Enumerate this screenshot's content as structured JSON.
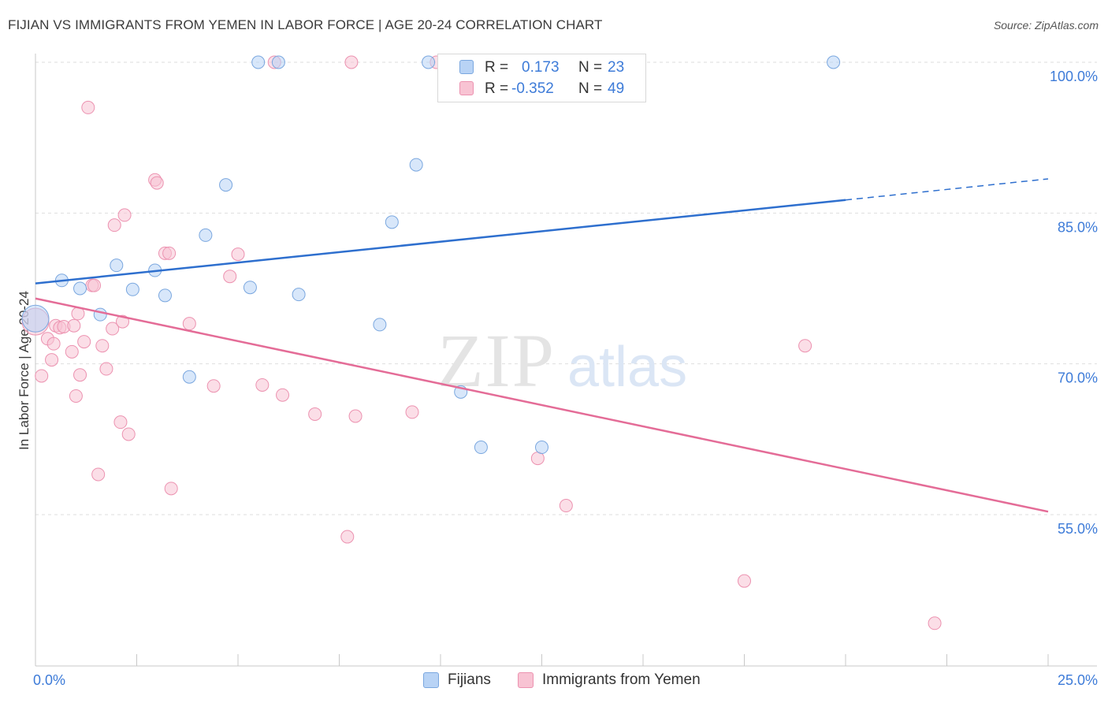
{
  "title": "FIJIAN VS IMMIGRANTS FROM YEMEN IN LABOR FORCE | AGE 20-24 CORRELATION CHART",
  "source": "Source: ZipAtlas.com",
  "watermark": {
    "zip": "ZIP",
    "atlas": "atlas"
  },
  "legend_top": {
    "r_label": "R =",
    "n_label": "N =",
    "rows": [
      {
        "r": "0.173",
        "n": "23"
      },
      {
        "r": "-0.352",
        "n": "49"
      }
    ]
  },
  "colors": {
    "fijians_fill": "#b8d3f5",
    "fijians_stroke": "#7aa7df",
    "fijians_line": "#2e6fce",
    "yemen_fill": "#f8c3d3",
    "yemen_stroke": "#ec92b0",
    "yemen_line": "#e46c97",
    "axis_text": "#3d7bd8",
    "grid": "#dedede"
  },
  "chart_data": {
    "type": "scatter",
    "title": "FIJIAN VS IMMIGRANTS FROM YEMEN IN LABOR FORCE | AGE 20-24 CORRELATION CHART",
    "xlabel": "",
    "ylabel": "In Labor Force | Age 20-24",
    "xlim": [
      0,
      25
    ],
    "ylim": [
      40,
      102
    ],
    "x_tick_labels": [
      "0.0%",
      "25.0%"
    ],
    "y_ticks": [
      55,
      70,
      85,
      100
    ],
    "y_tick_labels": [
      "55.0%",
      "70.0%",
      "85.0%",
      "100.0%"
    ],
    "grid": true,
    "legend_position": "bottom",
    "series": [
      {
        "name": "Fijians",
        "r": 0.173,
        "n": 23,
        "points": [
          [
            0.0,
            74.5
          ],
          [
            0.65,
            78.3
          ],
          [
            1.1,
            77.5
          ],
          [
            1.6,
            74.9
          ],
          [
            2.0,
            79.8
          ],
          [
            2.4,
            77.4
          ],
          [
            2.95,
            79.3
          ],
          [
            3.2,
            76.8
          ],
          [
            3.8,
            68.7
          ],
          [
            4.2,
            82.8
          ],
          [
            4.7,
            87.8
          ],
          [
            5.3,
            77.6
          ],
          [
            5.5,
            100.0
          ],
          [
            6.0,
            100.0
          ],
          [
            6.5,
            76.9
          ],
          [
            8.5,
            73.9
          ],
          [
            8.8,
            84.1
          ],
          [
            9.4,
            89.8
          ],
          [
            9.7,
            100.0
          ],
          [
            10.5,
            67.2
          ],
          [
            11.0,
            61.7
          ],
          [
            12.5,
            61.7
          ],
          [
            19.7,
            100.0
          ]
        ],
        "trend": {
          "x": [
            0,
            20
          ],
          "y": [
            78.0,
            86.3
          ],
          "dashed_to": [
            25,
            88.4
          ]
        }
      },
      {
        "name": "Immigrants from Yemen",
        "r": -0.352,
        "n": 49,
        "points": [
          [
            0.0,
            74.2
          ],
          [
            0.15,
            68.8
          ],
          [
            0.3,
            72.5
          ],
          [
            0.4,
            70.4
          ],
          [
            0.45,
            72.0
          ],
          [
            0.5,
            73.8
          ],
          [
            0.6,
            73.6
          ],
          [
            0.7,
            73.7
          ],
          [
            0.9,
            71.2
          ],
          [
            0.95,
            73.8
          ],
          [
            1.0,
            66.8
          ],
          [
            1.05,
            75.0
          ],
          [
            1.1,
            68.9
          ],
          [
            1.2,
            72.2
          ],
          [
            1.3,
            95.5
          ],
          [
            1.4,
            77.8
          ],
          [
            1.45,
            77.8
          ],
          [
            1.55,
            59.0
          ],
          [
            1.65,
            71.8
          ],
          [
            1.75,
            69.5
          ],
          [
            1.9,
            73.5
          ],
          [
            1.95,
            83.8
          ],
          [
            2.1,
            64.2
          ],
          [
            2.15,
            74.2
          ],
          [
            2.2,
            84.8
          ],
          [
            2.3,
            63.0
          ],
          [
            2.95,
            88.3
          ],
          [
            3.0,
            88.0
          ],
          [
            3.2,
            81.0
          ],
          [
            3.3,
            81.0
          ],
          [
            3.35,
            57.6
          ],
          [
            3.8,
            74.0
          ],
          [
            4.4,
            67.8
          ],
          [
            4.8,
            78.7
          ],
          [
            5.0,
            80.9
          ],
          [
            5.6,
            67.9
          ],
          [
            5.9,
            100.0
          ],
          [
            6.1,
            66.9
          ],
          [
            6.9,
            65.0
          ],
          [
            7.7,
            52.8
          ],
          [
            7.8,
            100.0
          ],
          [
            7.9,
            64.8
          ],
          [
            9.3,
            65.2
          ],
          [
            9.9,
            100.0
          ],
          [
            12.4,
            60.6
          ],
          [
            13.1,
            55.9
          ],
          [
            17.5,
            48.4
          ],
          [
            19.0,
            71.8
          ],
          [
            22.2,
            44.2
          ]
        ],
        "trend": {
          "x": [
            0,
            25
          ],
          "y": [
            76.5,
            55.3
          ]
        }
      }
    ]
  }
}
